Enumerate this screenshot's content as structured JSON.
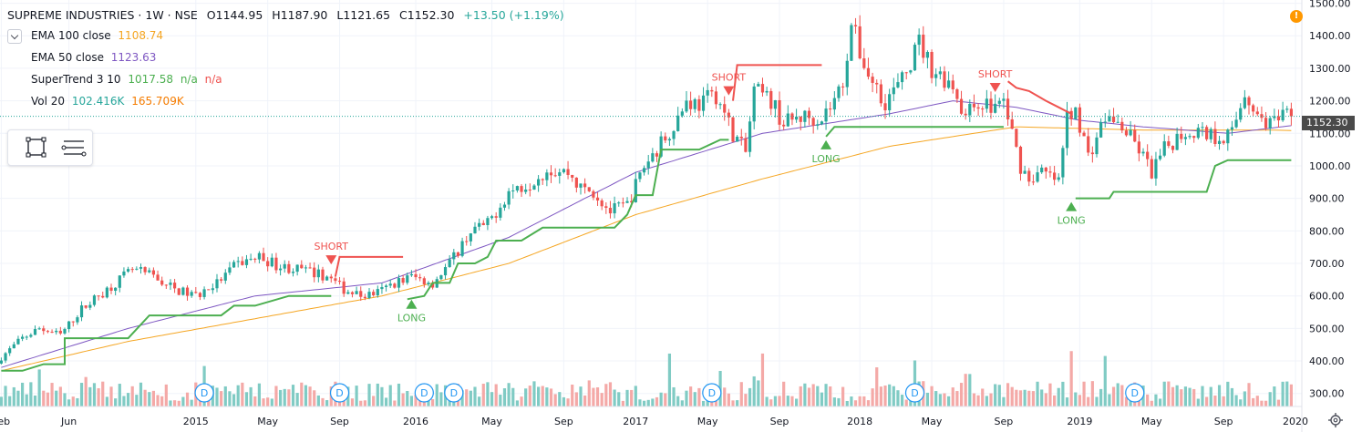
{
  "header": {
    "symbol": "SUPREME INDUSTRIES · 1W · NSE",
    "open": "O1144.95",
    "high": "H1187.90",
    "low": "L1121.65",
    "close": "C1152.30",
    "change": "+13.50 (+1.19%)"
  },
  "indicators": [
    {
      "label": "EMA 100 close",
      "value": "1108.74",
      "value2": "",
      "value3": "",
      "color": "#f5a623"
    },
    {
      "label": "EMA 50 close",
      "value": "1123.63",
      "value2": "",
      "value3": "",
      "color": "#7e57c2"
    },
    {
      "label": "SuperTrend 3 10",
      "value": "1017.58",
      "value2": "n/a",
      "value3": "n/a",
      "color": "#4caf50",
      "color2": "#4caf50",
      "color3": "#ef5350"
    },
    {
      "label": "Vol 20",
      "value": "102.416K",
      "value2": "165.709K",
      "value3": "",
      "color": "#26a69a",
      "color2": "#f57c00"
    }
  ],
  "last_price": "1152.30",
  "alert_icon": "!",
  "icons": [
    "collapse-chevron-icon",
    "rectangle-tool-icon",
    "lines-tool-icon",
    "alert-icon",
    "settings-gear-icon",
    "dividend-marker-icon"
  ],
  "colors": {
    "up": "#26a69a",
    "down": "#ef5350",
    "ema100": "#f5a623",
    "ema50": "#7e57c2",
    "supertrend_up": "#4caf50",
    "supertrend_down": "#ef5350",
    "vol_up": "#80cbc4",
    "vol_down": "#f4a9a7"
  },
  "chart_data": {
    "type": "candlestick",
    "title": "SUPREME INDUSTRIES · 1W · NSE",
    "y_axis": {
      "ticks": [
        "1500.00",
        "1400.00",
        "1300.00",
        "1200.00",
        "1100.00",
        "1000.00",
        "900.00",
        "800.00",
        "700.00",
        "600.00",
        "500.00",
        "400.00",
        "300.00"
      ],
      "range": [
        260,
        1510
      ]
    },
    "x_axis": {
      "labels": [
        "Feb",
        "Jun",
        "2015",
        "May",
        "Sep",
        "2016",
        "May",
        "Sep",
        "2017",
        "May",
        "Sep",
        "2018",
        "May",
        "Sep",
        "2019",
        "May",
        "Sep",
        "2020"
      ],
      "label_weeks": [
        0,
        16,
        46,
        63,
        80,
        98,
        116,
        133,
        150,
        167,
        184,
        203,
        220,
        237,
        255,
        272,
        289,
        306
      ]
    },
    "price_anchors": {
      "week": [
        0,
        6,
        10,
        15,
        20,
        27,
        32,
        37,
        42,
        47,
        52,
        57,
        62,
        67,
        72,
        78,
        82,
        86,
        90,
        94,
        98,
        103,
        107,
        112,
        116,
        121,
        126,
        130,
        135,
        138,
        141,
        145,
        149,
        153,
        157,
        161,
        163,
        166,
        170,
        174,
        177,
        179,
        183,
        186,
        190,
        195,
        198,
        200,
        202,
        204,
        206,
        210,
        214,
        218,
        221,
        226,
        229,
        232,
        235,
        238,
        242,
        244,
        247,
        251,
        253,
        255,
        258,
        262,
        266,
        270,
        273,
        276,
        280,
        284,
        288,
        292,
        295,
        298,
        302,
        305
      ],
      "close": [
        400,
        470,
        500,
        480,
        560,
        630,
        680,
        660,
        620,
        600,
        640,
        700,
        720,
        690,
        680,
        660,
        620,
        600,
        610,
        640,
        660,
        640,
        700,
        800,
        820,
        920,
        950,
        990,
        980,
        930,
        920,
        860,
        880,
        1000,
        1070,
        1150,
        1200,
        1190,
        1220,
        1100,
        1040,
        1230,
        1200,
        1130,
        1150,
        1150,
        1200,
        1260,
        1440,
        1350,
        1280,
        1200,
        1260,
        1380,
        1300,
        1250,
        1150,
        1200,
        1180,
        1200,
        1000,
        960,
        980,
        950,
        1150,
        1180,
        1030,
        1150,
        1120,
        1050,
        980,
        1050,
        1100,
        1110,
        1090,
        1100,
        1230,
        1150,
        1130,
        1152.3
      ]
    },
    "ema100": {
      "week": [
        0,
        30,
        60,
        90,
        120,
        150,
        180,
        210,
        240,
        270,
        300,
        305
      ],
      "value": [
        370,
        460,
        530,
        600,
        700,
        850,
        960,
        1060,
        1120,
        1110,
        1110,
        1108.74
      ]
    },
    "ema50": {
      "week": [
        0,
        30,
        60,
        90,
        120,
        150,
        180,
        210,
        225,
        240,
        255,
        270,
        290,
        305
      ],
      "value": [
        380,
        500,
        600,
        640,
        780,
        980,
        1100,
        1160,
        1200,
        1180,
        1140,
        1120,
        1100,
        1123.63
      ]
    },
    "supertrend": [
      {
        "dir": "up",
        "week": [
          0,
          5,
          10,
          15,
          15,
          30,
          35,
          35,
          45,
          52,
          55,
          60,
          68,
          68,
          78
        ],
        "value": [
          370,
          370,
          390,
          390,
          470,
          470,
          540,
          540,
          540,
          540,
          570,
          570,
          600,
          600,
          600
        ]
      },
      {
        "dir": "down",
        "week": [
          79,
          80,
          95
        ],
        "value": [
          660,
          720,
          720
        ]
      },
      {
        "dir": "up",
        "week": [
          96,
          100,
          102,
          106,
          108,
          112,
          115,
          117,
          118,
          123,
          128,
          133,
          138,
          145,
          148,
          150,
          154,
          156,
          160,
          165,
          170,
          172
        ],
        "value": [
          590,
          600,
          640,
          640,
          700,
          700,
          720,
          770,
          770,
          770,
          810,
          810,
          810,
          810,
          850,
          910,
          910,
          1050,
          1050,
          1050,
          1080,
          1080
        ]
      },
      {
        "dir": "down",
        "week": [
          173,
          174,
          194
        ],
        "value": [
          1200,
          1310,
          1310
        ]
      },
      {
        "dir": "up",
        "week": [
          195,
          197,
          205,
          215,
          225,
          235,
          237
        ],
        "value": [
          1090,
          1120,
          1120,
          1120,
          1120,
          1120,
          1120
        ]
      },
      {
        "dir": "down",
        "week": [
          238,
          240,
          243,
          247,
          250,
          253
        ],
        "value": [
          1260,
          1240,
          1230,
          1200,
          1180,
          1160
        ]
      },
      {
        "dir": "up",
        "week": [
          254,
          255,
          262,
          263,
          285,
          287,
          290,
          305
        ],
        "value": [
          900,
          900,
          900,
          920,
          920,
          1000,
          1017.58,
          1017.58
        ]
      }
    ],
    "signals": [
      {
        "type": "SHORT",
        "week": 78,
        "price": 680
      },
      {
        "type": "LONG",
        "week": 97,
        "price": 600
      },
      {
        "type": "SHORT",
        "week": 172,
        "price": 1200
      },
      {
        "type": "LONG",
        "week": 195,
        "price": 1090
      },
      {
        "type": "SHORT",
        "week": 235,
        "price": 1210
      },
      {
        "type": "LONG",
        "week": 253,
        "price": 900
      }
    ],
    "dividend_markers": {
      "label": "D",
      "weeks": [
        48,
        80,
        100,
        107,
        168,
        216,
        268
      ]
    }
  }
}
